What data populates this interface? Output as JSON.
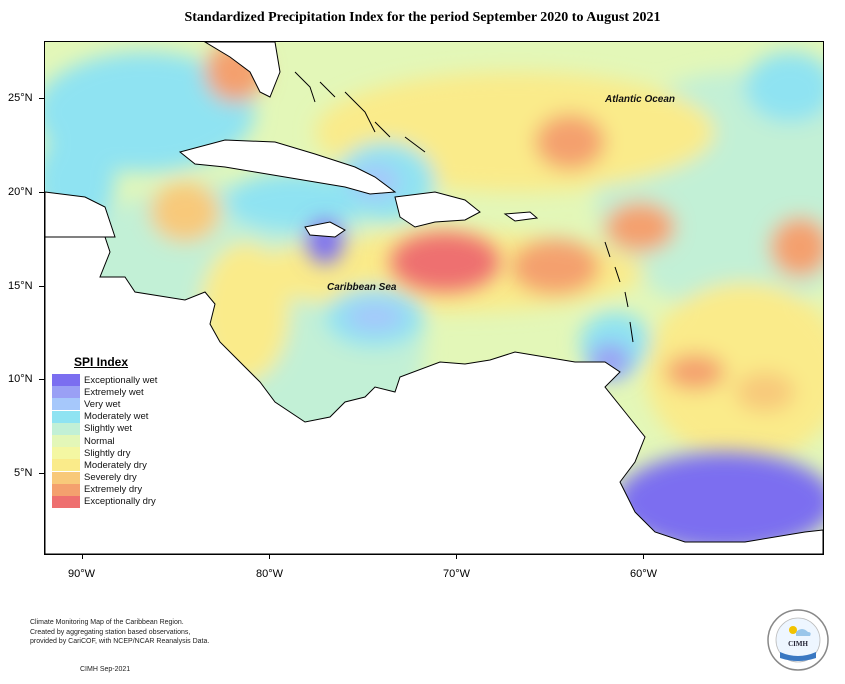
{
  "title": "Standardized Precipitation Index for the period September 2020 to August 2021",
  "map_labels": {
    "ocean": "Atlantic Ocean",
    "sea": "Caribbean Sea"
  },
  "lat_labels": [
    "25°N",
    "20°N",
    "15°N",
    "10°N",
    "5°N"
  ],
  "lon_labels": [
    "90°W",
    "80°W",
    "70°W",
    "60°W"
  ],
  "legend": {
    "title": "SPI Index",
    "items": [
      {
        "label": "Exceptionally wet",
        "color": "#7b6ef0"
      },
      {
        "label": "Extremely wet",
        "color": "#9aa0f5"
      },
      {
        "label": "Very wet",
        "color": "#a6c8fb"
      },
      {
        "label": "Moderately wet",
        "color": "#8fe3f2"
      },
      {
        "label": "Slightly wet",
        "color": "#c2f0d6"
      },
      {
        "label": "Normal",
        "color": "#e3f7b8"
      },
      {
        "label": "Slightly dry",
        "color": "#f4f7a2"
      },
      {
        "label": "Moderately dry",
        "color": "#faeb8a"
      },
      {
        "label": "Severely dry",
        "color": "#f8c97a"
      },
      {
        "label": "Extremely dry",
        "color": "#f4a06e"
      },
      {
        "label": "Exceptionally dry",
        "color": "#ee6f6f"
      }
    ]
  },
  "footer": {
    "line1": "Climate Monitoring Map of the Caribbean Region.",
    "line2": "Created by aggregating station based observations,",
    "line3": "provided by CariCOF, with NCEP/NCAR Reanalysis Data.",
    "credit": "CIMH Sep-2021"
  },
  "logo_text": "CIMH"
}
